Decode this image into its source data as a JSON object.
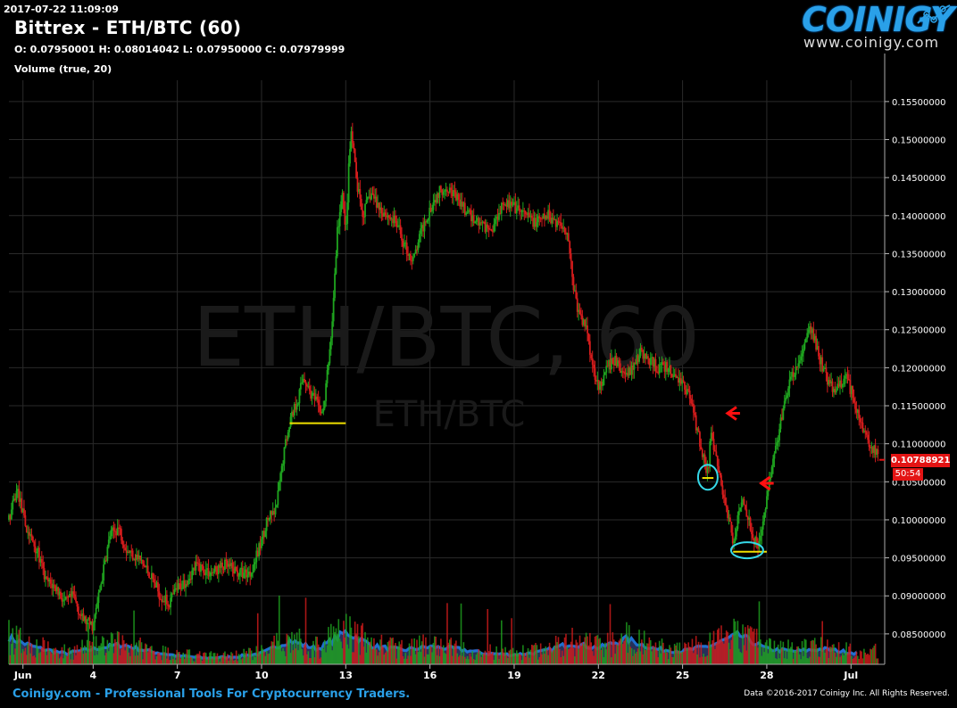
{
  "header": {
    "timestamp": "2017-07-22 11:09:09",
    "title": "Bittrex - ETH/BTC (60)",
    "ohlc": "O: 0.07950001 H: 0.08014042 L: 0.07950000 C: 0.07979999",
    "volume_label": "Volume (true, 20)"
  },
  "logo": {
    "word": "COINIGY",
    "url": "www.coinigy.com"
  },
  "footer": {
    "left": "Coinigy.com - Professional Tools For Cryptocurrency Traders.",
    "right": "Data ©2016-2017 Coinigy Inc. All Rights Reserved."
  },
  "watermark": {
    "big": "ETH/BTC, 60",
    "small": "ETH/BTC"
  },
  "colors": {
    "up": "#1fa51f",
    "down": "#d41c1c",
    "volume_line": "#1f6fd0",
    "grid": "#2a2a2a",
    "badge": "#e31414",
    "annotation_yellow": "#f0e000",
    "annotation_cyan": "#35d8e8",
    "arrow_red": "#ff1010"
  },
  "chart_data": {
    "type": "candlestick",
    "title": "Bittrex - ETH/BTC (60)",
    "yaxis": {
      "ticks": [
        "0.15500000",
        "0.15000000",
        "0.14500000",
        "0.14000000",
        "0.13500000",
        "0.13000000",
        "0.12500000",
        "0.12000000",
        "0.11500000",
        "0.11000000",
        "0.10500000",
        "0.10000000",
        "0.09500000",
        "0.09000000",
        "0.08500000"
      ],
      "range": [
        0.081,
        0.1578
      ]
    },
    "xaxis": {
      "ticks": [
        "Jun",
        "4",
        "7",
        "10",
        "13",
        "16",
        "19",
        "22",
        "25",
        "28",
        "Jul"
      ],
      "range_days": [
        1,
        32.2
      ]
    },
    "current_price": "0.10788921",
    "countdown": "50:54",
    "price_path": [
      [
        1.0,
        0.1
      ],
      [
        1.3,
        0.104
      ],
      [
        1.6,
        0.099
      ],
      [
        2.0,
        0.096
      ],
      [
        2.3,
        0.092
      ],
      [
        2.7,
        0.091
      ],
      [
        3.0,
        0.089
      ],
      [
        3.3,
        0.09
      ],
      [
        3.6,
        0.087
      ],
      [
        4.0,
        0.086
      ],
      [
        4.3,
        0.092
      ],
      [
        4.6,
        0.098
      ],
      [
        4.9,
        0.099
      ],
      [
        5.2,
        0.096
      ],
      [
        5.6,
        0.095
      ],
      [
        6.0,
        0.093
      ],
      [
        6.4,
        0.09
      ],
      [
        6.7,
        0.089
      ],
      [
        7.0,
        0.091
      ],
      [
        7.3,
        0.092
      ],
      [
        7.7,
        0.094
      ],
      [
        8.2,
        0.093
      ],
      [
        8.7,
        0.094
      ],
      [
        9.2,
        0.093
      ],
      [
        9.6,
        0.093
      ],
      [
        9.9,
        0.096
      ],
      [
        10.2,
        0.1
      ],
      [
        10.5,
        0.101
      ],
      [
        10.8,
        0.109
      ],
      [
        11.0,
        0.113
      ],
      [
        11.3,
        0.116
      ],
      [
        11.5,
        0.119
      ],
      [
        11.7,
        0.117
      ],
      [
        12.0,
        0.115
      ],
      [
        12.2,
        0.114
      ],
      [
        12.5,
        0.125
      ],
      [
        12.7,
        0.138
      ],
      [
        12.9,
        0.143
      ],
      [
        13.0,
        0.137
      ],
      [
        13.1,
        0.146
      ],
      [
        13.2,
        0.151
      ],
      [
        13.4,
        0.144
      ],
      [
        13.6,
        0.14
      ],
      [
        13.9,
        0.143
      ],
      [
        14.2,
        0.141
      ],
      [
        14.5,
        0.14
      ],
      [
        14.8,
        0.139
      ],
      [
        15.1,
        0.136
      ],
      [
        15.4,
        0.134
      ],
      [
        15.7,
        0.138
      ],
      [
        16.0,
        0.141
      ],
      [
        16.3,
        0.143
      ],
      [
        16.6,
        0.144
      ],
      [
        17.0,
        0.142
      ],
      [
        17.4,
        0.14
      ],
      [
        17.8,
        0.139
      ],
      [
        18.2,
        0.138
      ],
      [
        18.6,
        0.142
      ],
      [
        19.0,
        0.141
      ],
      [
        19.4,
        0.14
      ],
      [
        19.8,
        0.139
      ],
      [
        20.2,
        0.14
      ],
      [
        20.6,
        0.139
      ],
      [
        20.9,
        0.138
      ],
      [
        21.1,
        0.131
      ],
      [
        21.3,
        0.127
      ],
      [
        21.6,
        0.125
      ],
      [
        21.8,
        0.12
      ],
      [
        22.1,
        0.117
      ],
      [
        22.3,
        0.12
      ],
      [
        22.6,
        0.121
      ],
      [
        22.9,
        0.119
      ],
      [
        23.2,
        0.12
      ],
      [
        23.5,
        0.122
      ],
      [
        23.8,
        0.121
      ],
      [
        24.1,
        0.12
      ],
      [
        24.4,
        0.12
      ],
      [
        24.7,
        0.119
      ],
      [
        25.0,
        0.118
      ],
      [
        25.3,
        0.116
      ],
      [
        25.5,
        0.112
      ],
      [
        25.7,
        0.109
      ],
      [
        25.9,
        0.106
      ],
      [
        26.0,
        0.111
      ],
      [
        26.2,
        0.108
      ],
      [
        26.4,
        0.104
      ],
      [
        26.6,
        0.101
      ],
      [
        26.8,
        0.097
      ],
      [
        26.9,
        0.099
      ],
      [
        27.1,
        0.103
      ],
      [
        27.3,
        0.101
      ],
      [
        27.5,
        0.098
      ],
      [
        27.7,
        0.096
      ],
      [
        27.9,
        0.101
      ],
      [
        28.2,
        0.107
      ],
      [
        28.5,
        0.113
      ],
      [
        28.8,
        0.118
      ],
      [
        29.1,
        0.12
      ],
      [
        29.4,
        0.124
      ],
      [
        29.6,
        0.125
      ],
      [
        29.9,
        0.121
      ],
      [
        30.2,
        0.118
      ],
      [
        30.5,
        0.117
      ],
      [
        30.8,
        0.119
      ],
      [
        31.1,
        0.116
      ],
      [
        31.4,
        0.112
      ],
      [
        31.7,
        0.11
      ],
      [
        32.0,
        0.108
      ]
    ],
    "volume_level": [
      [
        1.0,
        0.5
      ],
      [
        2.0,
        0.32
      ],
      [
        3.0,
        0.22
      ],
      [
        4.0,
        0.3
      ],
      [
        5.0,
        0.38
      ],
      [
        6.0,
        0.26
      ],
      [
        7.0,
        0.18
      ],
      [
        8.0,
        0.14
      ],
      [
        9.0,
        0.16
      ],
      [
        10.0,
        0.22
      ],
      [
        11.0,
        0.45
      ],
      [
        12.0,
        0.3
      ],
      [
        13.0,
        0.6
      ],
      [
        14.0,
        0.35
      ],
      [
        15.0,
        0.28
      ],
      [
        16.0,
        0.34
      ],
      [
        17.0,
        0.3
      ],
      [
        18.0,
        0.22
      ],
      [
        19.0,
        0.2
      ],
      [
        20.0,
        0.25
      ],
      [
        21.0,
        0.4
      ],
      [
        22.0,
        0.32
      ],
      [
        23.0,
        0.48
      ],
      [
        24.0,
        0.3
      ],
      [
        25.0,
        0.26
      ],
      [
        26.0,
        0.36
      ],
      [
        27.0,
        0.55
      ],
      [
        28.0,
        0.3
      ],
      [
        29.0,
        0.26
      ],
      [
        30.0,
        0.3
      ],
      [
        31.0,
        0.24
      ],
      [
        32.0,
        0.22
      ]
    ],
    "annotations": {
      "yellow_lines": [
        {
          "x": [
            11.0,
            13.0
          ],
          "y": 0.1127
        },
        {
          "x": [
            25.7,
            26.1
          ],
          "y": 0.1055
        },
        {
          "x": [
            26.8,
            28.0
          ],
          "y": 0.0958
        }
      ],
      "cyan_circles": [
        {
          "x": 25.9,
          "y": 0.1056
        },
        {
          "x": 27.3,
          "y": 0.096
        }
      ],
      "red_arrows": [
        {
          "x": 26.6,
          "y": 0.114
        },
        {
          "x": 27.8,
          "y": 0.1048
        }
      ]
    }
  }
}
